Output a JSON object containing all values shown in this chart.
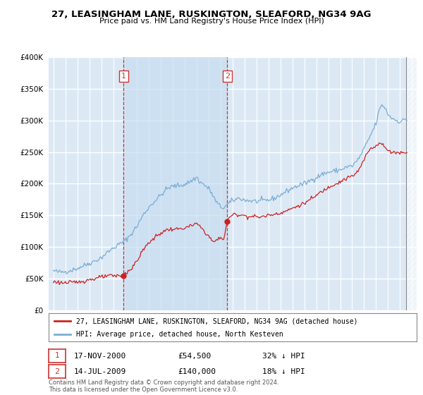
{
  "title": "27, LEASINGHAM LANE, RUSKINGTON, SLEAFORD, NG34 9AG",
  "subtitle": "Price paid vs. HM Land Registry's House Price Index (HPI)",
  "ylim": [
    0,
    400000
  ],
  "yticks": [
    0,
    50000,
    100000,
    150000,
    200000,
    250000,
    300000,
    350000,
    400000
  ],
  "ytick_labels": [
    "£0",
    "£50K",
    "£100K",
    "£150K",
    "£200K",
    "£250K",
    "£300K",
    "£350K",
    "£400K"
  ],
  "xlim_left": 1994.6,
  "xlim_right": 2025.4,
  "bg_color": "#dce9f5",
  "grid_color": "#ffffff",
  "hpi_color": "#7aadd4",
  "price_color": "#cc2222",
  "vline_color": "#cc3333",
  "shade_color": "#dce9f5",
  "marker1_x": 2000.88,
  "marker1_y": 54500,
  "marker2_x": 2009.54,
  "marker2_y": 140000,
  "legend_line1": "27, LEASINGHAM LANE, RUSKINGTON, SLEAFORD, NG34 9AG (detached house)",
  "legend_line2": "HPI: Average price, detached house, North Kesteven",
  "table_row1": [
    "1",
    "17-NOV-2000",
    "£54,500",
    "32% ↓ HPI"
  ],
  "table_row2": [
    "2",
    "14-JUL-2009",
    "£140,000",
    "18% ↓ HPI"
  ],
  "footer": "Contains HM Land Registry data © Crown copyright and database right 2024.\nThis data is licensed under the Open Government Licence v3.0."
}
